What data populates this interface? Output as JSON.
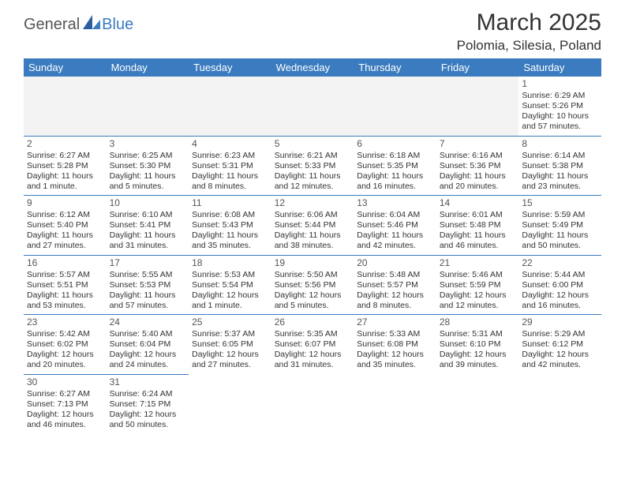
{
  "logo": {
    "text1": "General",
    "text2": "Blue"
  },
  "title": "March 2025",
  "location": "Polomia, Silesia, Poland",
  "colors": {
    "header_bg": "#3b7bbf",
    "header_fg": "#ffffff",
    "grid_line": "#3b7bbf",
    "text": "#333333",
    "muted": "#555555",
    "empty_bg": "#f3f3f3",
    "page_bg": "#ffffff",
    "logo_gray": "#555555",
    "logo_blue": "#3b7bbf"
  },
  "typography": {
    "title_fontsize": 30,
    "location_fontsize": 17,
    "dayheader_fontsize": 13,
    "cell_fontsize": 10.5,
    "daynum_fontsize": 12
  },
  "day_headers": [
    "Sunday",
    "Monday",
    "Tuesday",
    "Wednesday",
    "Thursday",
    "Friday",
    "Saturday"
  ],
  "weeks": [
    [
      null,
      null,
      null,
      null,
      null,
      null,
      {
        "n": "1",
        "sr": "Sunrise: 6:29 AM",
        "ss": "Sunset: 5:26 PM",
        "d1": "Daylight: 10 hours",
        "d2": "and 57 minutes."
      }
    ],
    [
      {
        "n": "2",
        "sr": "Sunrise: 6:27 AM",
        "ss": "Sunset: 5:28 PM",
        "d1": "Daylight: 11 hours",
        "d2": "and 1 minute."
      },
      {
        "n": "3",
        "sr": "Sunrise: 6:25 AM",
        "ss": "Sunset: 5:30 PM",
        "d1": "Daylight: 11 hours",
        "d2": "and 5 minutes."
      },
      {
        "n": "4",
        "sr": "Sunrise: 6:23 AM",
        "ss": "Sunset: 5:31 PM",
        "d1": "Daylight: 11 hours",
        "d2": "and 8 minutes."
      },
      {
        "n": "5",
        "sr": "Sunrise: 6:21 AM",
        "ss": "Sunset: 5:33 PM",
        "d1": "Daylight: 11 hours",
        "d2": "and 12 minutes."
      },
      {
        "n": "6",
        "sr": "Sunrise: 6:18 AM",
        "ss": "Sunset: 5:35 PM",
        "d1": "Daylight: 11 hours",
        "d2": "and 16 minutes."
      },
      {
        "n": "7",
        "sr": "Sunrise: 6:16 AM",
        "ss": "Sunset: 5:36 PM",
        "d1": "Daylight: 11 hours",
        "d2": "and 20 minutes."
      },
      {
        "n": "8",
        "sr": "Sunrise: 6:14 AM",
        "ss": "Sunset: 5:38 PM",
        "d1": "Daylight: 11 hours",
        "d2": "and 23 minutes."
      }
    ],
    [
      {
        "n": "9",
        "sr": "Sunrise: 6:12 AM",
        "ss": "Sunset: 5:40 PM",
        "d1": "Daylight: 11 hours",
        "d2": "and 27 minutes."
      },
      {
        "n": "10",
        "sr": "Sunrise: 6:10 AM",
        "ss": "Sunset: 5:41 PM",
        "d1": "Daylight: 11 hours",
        "d2": "and 31 minutes."
      },
      {
        "n": "11",
        "sr": "Sunrise: 6:08 AM",
        "ss": "Sunset: 5:43 PM",
        "d1": "Daylight: 11 hours",
        "d2": "and 35 minutes."
      },
      {
        "n": "12",
        "sr": "Sunrise: 6:06 AM",
        "ss": "Sunset: 5:44 PM",
        "d1": "Daylight: 11 hours",
        "d2": "and 38 minutes."
      },
      {
        "n": "13",
        "sr": "Sunrise: 6:04 AM",
        "ss": "Sunset: 5:46 PM",
        "d1": "Daylight: 11 hours",
        "d2": "and 42 minutes."
      },
      {
        "n": "14",
        "sr": "Sunrise: 6:01 AM",
        "ss": "Sunset: 5:48 PM",
        "d1": "Daylight: 11 hours",
        "d2": "and 46 minutes."
      },
      {
        "n": "15",
        "sr": "Sunrise: 5:59 AM",
        "ss": "Sunset: 5:49 PM",
        "d1": "Daylight: 11 hours",
        "d2": "and 50 minutes."
      }
    ],
    [
      {
        "n": "16",
        "sr": "Sunrise: 5:57 AM",
        "ss": "Sunset: 5:51 PM",
        "d1": "Daylight: 11 hours",
        "d2": "and 53 minutes."
      },
      {
        "n": "17",
        "sr": "Sunrise: 5:55 AM",
        "ss": "Sunset: 5:53 PM",
        "d1": "Daylight: 11 hours",
        "d2": "and 57 minutes."
      },
      {
        "n": "18",
        "sr": "Sunrise: 5:53 AM",
        "ss": "Sunset: 5:54 PM",
        "d1": "Daylight: 12 hours",
        "d2": "and 1 minute."
      },
      {
        "n": "19",
        "sr": "Sunrise: 5:50 AM",
        "ss": "Sunset: 5:56 PM",
        "d1": "Daylight: 12 hours",
        "d2": "and 5 minutes."
      },
      {
        "n": "20",
        "sr": "Sunrise: 5:48 AM",
        "ss": "Sunset: 5:57 PM",
        "d1": "Daylight: 12 hours",
        "d2": "and 8 minutes."
      },
      {
        "n": "21",
        "sr": "Sunrise: 5:46 AM",
        "ss": "Sunset: 5:59 PM",
        "d1": "Daylight: 12 hours",
        "d2": "and 12 minutes."
      },
      {
        "n": "22",
        "sr": "Sunrise: 5:44 AM",
        "ss": "Sunset: 6:00 PM",
        "d1": "Daylight: 12 hours",
        "d2": "and 16 minutes."
      }
    ],
    [
      {
        "n": "23",
        "sr": "Sunrise: 5:42 AM",
        "ss": "Sunset: 6:02 PM",
        "d1": "Daylight: 12 hours",
        "d2": "and 20 minutes."
      },
      {
        "n": "24",
        "sr": "Sunrise: 5:40 AM",
        "ss": "Sunset: 6:04 PM",
        "d1": "Daylight: 12 hours",
        "d2": "and 24 minutes."
      },
      {
        "n": "25",
        "sr": "Sunrise: 5:37 AM",
        "ss": "Sunset: 6:05 PM",
        "d1": "Daylight: 12 hours",
        "d2": "and 27 minutes."
      },
      {
        "n": "26",
        "sr": "Sunrise: 5:35 AM",
        "ss": "Sunset: 6:07 PM",
        "d1": "Daylight: 12 hours",
        "d2": "and 31 minutes."
      },
      {
        "n": "27",
        "sr": "Sunrise: 5:33 AM",
        "ss": "Sunset: 6:08 PM",
        "d1": "Daylight: 12 hours",
        "d2": "and 35 minutes."
      },
      {
        "n": "28",
        "sr": "Sunrise: 5:31 AM",
        "ss": "Sunset: 6:10 PM",
        "d1": "Daylight: 12 hours",
        "d2": "and 39 minutes."
      },
      {
        "n": "29",
        "sr": "Sunrise: 5:29 AM",
        "ss": "Sunset: 6:12 PM",
        "d1": "Daylight: 12 hours",
        "d2": "and 42 minutes."
      }
    ],
    [
      {
        "n": "30",
        "sr": "Sunrise: 6:27 AM",
        "ss": "Sunset: 7:13 PM",
        "d1": "Daylight: 12 hours",
        "d2": "and 46 minutes."
      },
      {
        "n": "31",
        "sr": "Sunrise: 6:24 AM",
        "ss": "Sunset: 7:15 PM",
        "d1": "Daylight: 12 hours",
        "d2": "and 50 minutes."
      },
      null,
      null,
      null,
      null,
      null
    ]
  ]
}
